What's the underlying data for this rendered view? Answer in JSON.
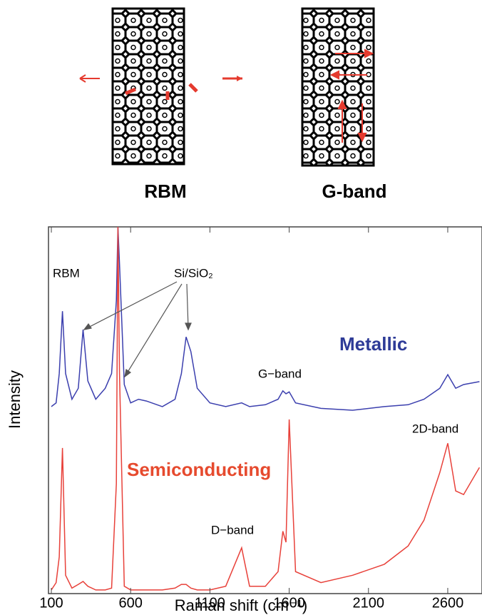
{
  "figure": {
    "labels": [
      "RBM",
      "G-band"
    ]
  },
  "chart_data": {
    "type": "line",
    "xlabel": "Raman shift (cm⁻¹)",
    "ylabel": "Intensity",
    "annotations": [
      "RBM",
      "Si/SiO₂",
      "G−band",
      "D−band",
      "2D-band"
    ],
    "x": [
      100,
      130,
      150,
      170,
      190,
      230,
      270,
      300,
      330,
      380,
      440,
      480,
      510,
      520,
      530,
      560,
      600,
      650,
      700,
      800,
      880,
      920,
      950,
      980,
      1020,
      1100,
      1200,
      1300,
      1350,
      1450,
      1530,
      1560,
      1580,
      1600,
      1640,
      1800,
      2000,
      2200,
      2350,
      2450,
      2550,
      2600,
      2650,
      2700,
      2800
    ],
    "series": [
      {
        "name": "Metallic",
        "color": "#3b3fae",
        "values": [
          51,
          52,
          60,
          77,
          60,
          53,
          56,
          72,
          58,
          53,
          56,
          60,
          80,
          100,
          90,
          57,
          52,
          53,
          52.5,
          51,
          53,
          60,
          70,
          66,
          56,
          52,
          51,
          52,
          51,
          51.5,
          53,
          55.3,
          54.5,
          55,
          52,
          50.5,
          50,
          51,
          51.5,
          53,
          56,
          59.7,
          56,
          57,
          57.8
        ]
      },
      {
        "name": "Semiconducting",
        "color": "#e8413a",
        "values": [
          1,
          3,
          10,
          39.7,
          5,
          1.5,
          2.5,
          3.3,
          2,
          1,
          1,
          1.5,
          30,
          100,
          60,
          2,
          1,
          1,
          1,
          1,
          1.5,
          2.5,
          2.5,
          1.5,
          1,
          1,
          2,
          12.5,
          2,
          2,
          6,
          17,
          14,
          47.5,
          6,
          3,
          5,
          8,
          13,
          20,
          33,
          41,
          28,
          27,
          34.4
        ]
      }
    ],
    "xlim": [
      82,
      2816
    ],
    "ylim": [
      0,
      100
    ],
    "xticks": [
      100,
      600,
      1100,
      1600,
      2100,
      2600
    ]
  }
}
